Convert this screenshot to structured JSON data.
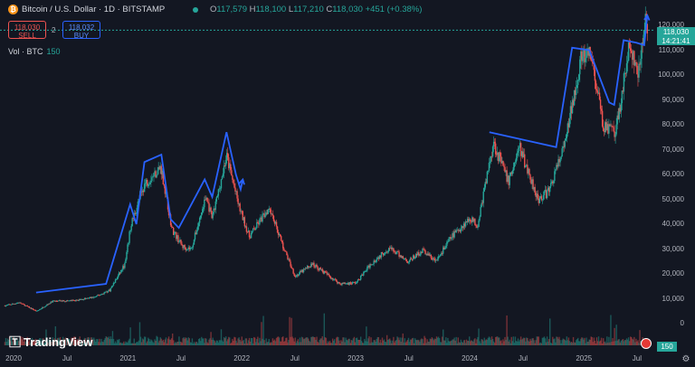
{
  "header": {
    "coin_glyph": "₿",
    "title": "Bitcoin / U.S. Dollar · 1D · BITSTAMP",
    "ohlc": [
      {
        "key": "O",
        "value": "117,579"
      },
      {
        "key": "H",
        "value": "118,100"
      },
      {
        "key": "L",
        "value": "117,210"
      },
      {
        "key": "C",
        "value": "118,030"
      }
    ],
    "change": "+451 (+0.38%)"
  },
  "trade": {
    "sell_price": "118,030",
    "sell_label": "SELL",
    "spread": "2",
    "buy_price": "118,032",
    "buy_label": "BUY"
  },
  "volume_label": "Vol · BTC",
  "volume_value": "150",
  "price_tag": {
    "price": "118,030",
    "countdown": "14:21:41"
  },
  "volume_tag": "150",
  "brand": "TradingView",
  "y_axis": [
    "120,000",
    "110,000",
    "100,000",
    "90,000",
    "80,000",
    "70,000",
    "60,000",
    "50,000",
    "40,000",
    "30,000",
    "20,000",
    "10,000",
    "0"
  ],
  "x_axis": [
    "2020",
    "Jul",
    "2021",
    "Jul",
    "2022",
    "Jul",
    "2023",
    "Jul",
    "2024",
    "Jul",
    "2025",
    "Jul"
  ],
  "colors": {
    "up": "#26a69a",
    "down": "#ef5350",
    "annotation": "#2962ff",
    "background": "#131722"
  },
  "chart_data": {
    "type": "candlestick",
    "series_name": "BTCUSD",
    "ylim": [
      0,
      120000
    ],
    "close_points": [
      [
        "2019-12-01",
        7200
      ],
      [
        "2020-01-15",
        8500
      ],
      [
        "2020-03-12",
        5000
      ],
      [
        "2020-05-01",
        9000
      ],
      [
        "2020-07-15",
        9300
      ],
      [
        "2020-09-15",
        10700
      ],
      [
        "2020-11-01",
        13500
      ],
      [
        "2020-12-20",
        24000
      ],
      [
        "2021-01-08",
        40000
      ],
      [
        "2021-02-20",
        56000
      ],
      [
        "2021-04-14",
        63000
      ],
      [
        "2021-05-19",
        38000
      ],
      [
        "2021-06-22",
        31000
      ],
      [
        "2021-07-20",
        30000
      ],
      [
        "2021-09-05",
        51000
      ],
      [
        "2021-09-25",
        42000
      ],
      [
        "2021-11-10",
        67500
      ],
      [
        "2021-12-20",
        47000
      ],
      [
        "2022-01-22",
        35000
      ],
      [
        "2022-03-28",
        47000
      ],
      [
        "2022-05-10",
        31000
      ],
      [
        "2022-06-18",
        19000
      ],
      [
        "2022-08-12",
        24000
      ],
      [
        "2022-11-09",
        16000
      ],
      [
        "2022-12-31",
        16500
      ],
      [
        "2023-02-15",
        24000
      ],
      [
        "2023-04-14",
        30500
      ],
      [
        "2023-06-15",
        25000
      ],
      [
        "2023-08-01",
        29500
      ],
      [
        "2023-09-11",
        25000
      ],
      [
        "2023-11-01",
        35000
      ],
      [
        "2023-12-31",
        42500
      ],
      [
        "2024-01-23",
        39500
      ],
      [
        "2024-03-14",
        73000
      ],
      [
        "2024-05-01",
        57000
      ],
      [
        "2024-06-05",
        71000
      ],
      [
        "2024-08-05",
        50000
      ],
      [
        "2024-09-06",
        53000
      ],
      [
        "2024-10-29",
        72000
      ],
      [
        "2024-12-17",
        106000
      ],
      [
        "2025-01-20",
        108000
      ],
      [
        "2025-02-28",
        80000
      ],
      [
        "2025-04-09",
        76000
      ],
      [
        "2025-05-22",
        111000
      ],
      [
        "2025-06-22",
        100000
      ],
      [
        "2025-07-14",
        122000
      ],
      [
        "2025-07-20",
        118030
      ]
    ],
    "annotation_path": [
      [
        "2020-03-10",
        12500
      ],
      [
        "2020-10-20",
        16000
      ],
      [
        "2021-01-05",
        48000
      ],
      [
        "2021-01-25",
        40000
      ],
      [
        "2021-02-20",
        65000
      ],
      [
        "2021-04-15",
        68000
      ],
      [
        "2021-05-15",
        42000
      ],
      [
        "2021-06-10",
        38500
      ],
      [
        "2021-09-01",
        58000
      ],
      [
        "2021-09-25",
        51000
      ],
      [
        "2021-11-10",
        77000
      ],
      [
        "2021-12-10",
        60000
      ],
      [
        "2021-12-25",
        54000
      ],
      [
        "2022-01-01",
        58000
      ]
    ],
    "annotation_path_2": [
      [
        "2024-03-01",
        77000
      ],
      [
        "2024-10-01",
        71000
      ],
      [
        "2024-11-21",
        111000
      ],
      [
        "2025-01-15",
        110000
      ],
      [
        "2025-03-20",
        89000
      ],
      [
        "2025-04-05",
        88000
      ],
      [
        "2025-05-05",
        114000
      ],
      [
        "2025-06-15",
        113000
      ],
      [
        "2025-07-10",
        112000
      ],
      [
        "2025-07-20",
        124000
      ]
    ]
  }
}
